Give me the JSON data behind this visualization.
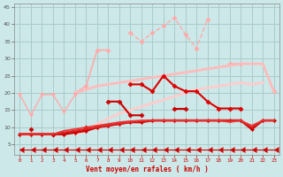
{
  "x": [
    0,
    1,
    2,
    3,
    4,
    5,
    6,
    7,
    8,
    9,
    10,
    11,
    12,
    13,
    14,
    15,
    16,
    17,
    18,
    19,
    20,
    21,
    22,
    23
  ],
  "bg_color": "#cce8e8",
  "grid_color": "#aacccc",
  "xlabel": "Vent moyen/en rafales ( km/h )",
  "xlabel_color": "#cc0000",
  "series": [
    {
      "name": "pink_dashed_upper",
      "color": "#ffaaaa",
      "lw": 1.0,
      "linestyle": "--",
      "marker": "D",
      "ms": 2.5,
      "values": [
        null,
        null,
        null,
        null,
        null,
        null,
        null,
        null,
        null,
        null,
        37.5,
        35.0,
        37.5,
        39.5,
        42.0,
        37.0,
        33.0,
        41.5,
        null,
        null,
        null,
        null,
        null,
        null
      ]
    },
    {
      "name": "pink_solid_wide",
      "color": "#ffaaaa",
      "lw": 1.2,
      "linestyle": "-",
      "marker": "D",
      "ms": 2.5,
      "values": [
        null,
        null,
        null,
        null,
        null,
        20.0,
        22.0,
        32.5,
        32.5,
        null,
        null,
        null,
        null,
        null,
        null,
        null,
        null,
        null,
        null,
        28.5,
        28.5,
        null,
        null,
        20.5
      ]
    },
    {
      "name": "pink_smooth_upper",
      "color": "#ffbbbb",
      "lw": 2.0,
      "linestyle": "-",
      "marker": null,
      "ms": 0,
      "values": [
        null,
        null,
        null,
        null,
        null,
        20.0,
        21.0,
        22.0,
        22.5,
        23.0,
        23.5,
        24.0,
        24.5,
        25.0,
        25.5,
        26.0,
        26.5,
        27.0,
        27.5,
        28.0,
        28.5,
        28.5,
        28.5,
        20.5
      ]
    },
    {
      "name": "pink_smooth_lower",
      "color": "#ffcccc",
      "lw": 2.0,
      "linestyle": "-",
      "marker": null,
      "ms": 0,
      "values": [
        null,
        null,
        null,
        null,
        null,
        8.0,
        9.0,
        11.0,
        12.5,
        14.0,
        15.0,
        16.0,
        17.0,
        18.0,
        19.0,
        20.0,
        21.0,
        21.5,
        22.0,
        22.5,
        23.0,
        22.5,
        23.0,
        null
      ]
    },
    {
      "name": "pink_v_markers",
      "color": "#ffaaaa",
      "lw": 1.0,
      "linestyle": "-",
      "marker": "v",
      "ms": 3,
      "values": [
        19.5,
        13.5,
        19.5,
        19.5,
        14.5,
        19.5,
        null,
        null,
        null,
        null,
        null,
        null,
        null,
        null,
        null,
        null,
        null,
        null,
        null,
        null,
        null,
        null,
        null,
        null
      ]
    },
    {
      "name": "dark_red_main",
      "color": "#dd0000",
      "lw": 1.5,
      "linestyle": "-",
      "marker": "D",
      "ms": 2.5,
      "values": [
        null,
        null,
        null,
        null,
        null,
        null,
        null,
        null,
        null,
        null,
        22.5,
        22.5,
        20.5,
        25.0,
        22.0,
        20.5,
        20.5,
        17.5,
        15.5,
        15.5,
        15.5,
        null,
        null,
        null
      ]
    },
    {
      "name": "dark_red_lower",
      "color": "#cc0000",
      "lw": 1.5,
      "linestyle": "-",
      "marker": "D",
      "ms": 2.5,
      "values": [
        null,
        9.5,
        null,
        8.0,
        null,
        null,
        10.0,
        null,
        17.5,
        17.5,
        13.5,
        13.5,
        null,
        null,
        15.5,
        15.5,
        null,
        null,
        null,
        null,
        null,
        null,
        null,
        null
      ]
    },
    {
      "name": "red_continuous1",
      "color": "#cc0000",
      "lw": 1.8,
      "linestyle": "-",
      "marker": "D",
      "ms": 2.0,
      "values": [
        8.0,
        8.0,
        8.0,
        8.0,
        8.0,
        8.5,
        9.0,
        10.0,
        10.5,
        11.0,
        11.5,
        11.5,
        12.0,
        12.0,
        12.0,
        12.0,
        12.0,
        12.0,
        12.0,
        12.0,
        12.0,
        9.5,
        12.0,
        12.0
      ]
    },
    {
      "name": "red_continuous2",
      "color": "#dd2222",
      "lw": 1.5,
      "linestyle": "-",
      "marker": null,
      "ms": 0,
      "values": [
        8.0,
        8.0,
        8.0,
        8.0,
        8.5,
        9.0,
        9.5,
        10.0,
        10.5,
        11.0,
        11.5,
        11.8,
        12.0,
        12.0,
        12.0,
        12.0,
        12.0,
        12.0,
        12.0,
        12.0,
        12.0,
        10.0,
        12.0,
        12.0
      ]
    },
    {
      "name": "red_continuous3",
      "color": "#ee3333",
      "lw": 1.2,
      "linestyle": "-",
      "marker": null,
      "ms": 0,
      "values": [
        8.0,
        8.0,
        8.0,
        8.0,
        9.0,
        9.5,
        10.0,
        10.5,
        11.0,
        11.5,
        11.8,
        12.0,
        12.0,
        12.0,
        12.0,
        12.0,
        12.0,
        12.0,
        12.0,
        11.5,
        12.0,
        10.5,
        12.0,
        12.0
      ]
    },
    {
      "name": "arrow_row",
      "color": "#cc0000",
      "lw": 0.8,
      "linestyle": "-",
      "marker": 4,
      "ms": 5,
      "values": [
        3.5,
        3.5,
        3.5,
        3.5,
        3.5,
        3.5,
        3.5,
        3.5,
        3.5,
        3.5,
        3.5,
        3.5,
        3.5,
        3.5,
        3.5,
        3.5,
        3.5,
        3.5,
        3.5,
        3.5,
        3.5,
        3.5,
        3.5,
        3.5
      ]
    }
  ],
  "yticks": [
    5,
    10,
    15,
    20,
    25,
    30,
    35,
    40,
    45
  ],
  "ylim": [
    2.0,
    46.0
  ],
  "xlim": [
    -0.5,
    23.5
  ]
}
